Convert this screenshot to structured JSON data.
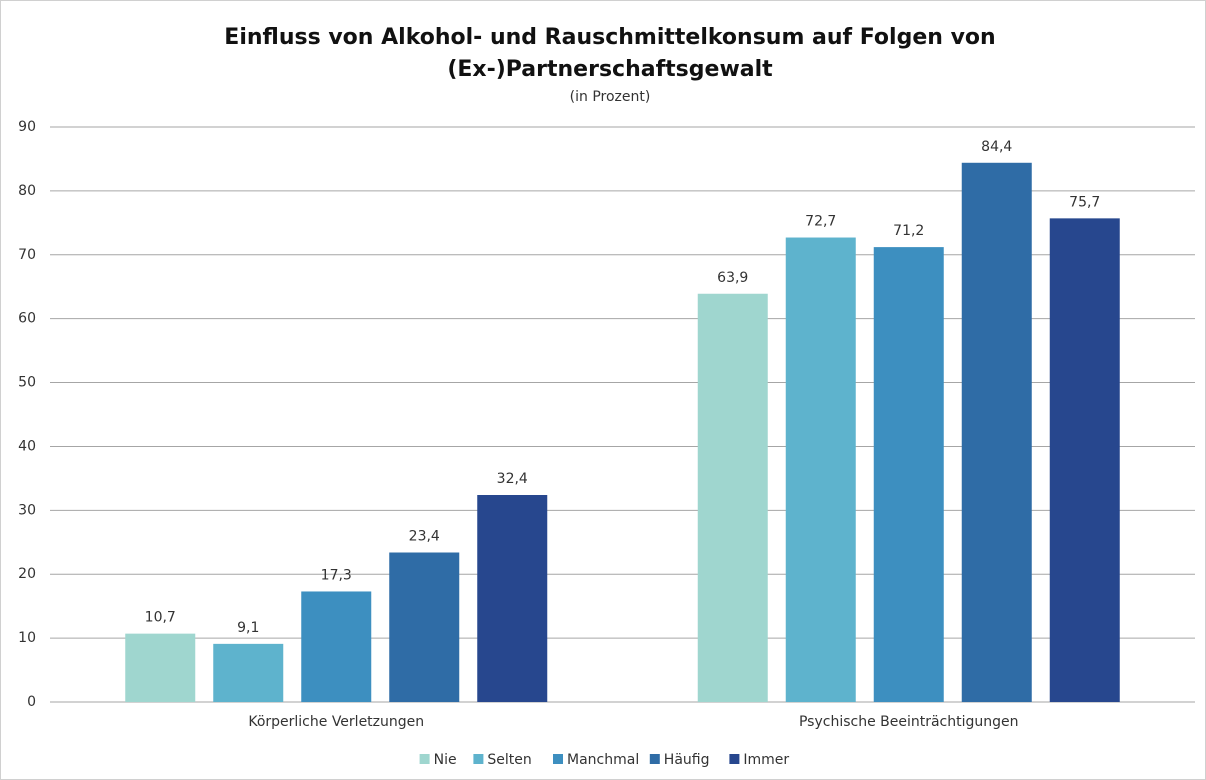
{
  "chart_data": {
    "type": "bar",
    "title": [
      "Einfluss von Alkohol- und Rauschmittelkonsum auf Folgen von",
      "(Ex-)Partnerschaftsgewalt"
    ],
    "subtitle": "(in Prozent)",
    "categories": [
      "Körperliche Verletzungen",
      "Psychische Beeinträchtigungen"
    ],
    "series": [
      {
        "name": "Nie",
        "color": "#9fd6cf",
        "values": [
          10.7,
          63.9
        ],
        "value_labels": [
          "10,7",
          "63,9"
        ]
      },
      {
        "name": "Selten",
        "color": "#5eb3cd",
        "values": [
          9.1,
          72.7
        ],
        "value_labels": [
          "9,1",
          "72,7"
        ]
      },
      {
        "name": "Manchmal",
        "color": "#3d8fc0",
        "values": [
          17.3,
          71.2
        ],
        "value_labels": [
          "17,3",
          "71,2"
        ]
      },
      {
        "name": "Häufig",
        "color": "#2f6ca6",
        "values": [
          23.4,
          84.4
        ],
        "value_labels": [
          "23,4",
          "84,4"
        ]
      },
      {
        "name": "Immer",
        "color": "#27478e",
        "values": [
          32.4,
          75.7
        ],
        "value_labels": [
          "32,4",
          "75,7"
        ]
      }
    ],
    "ylim": [
      0,
      90
    ],
    "yticks": [
      0,
      10,
      20,
      30,
      40,
      50,
      60,
      70,
      80,
      90
    ],
    "grid": true,
    "legend": "bottom"
  }
}
